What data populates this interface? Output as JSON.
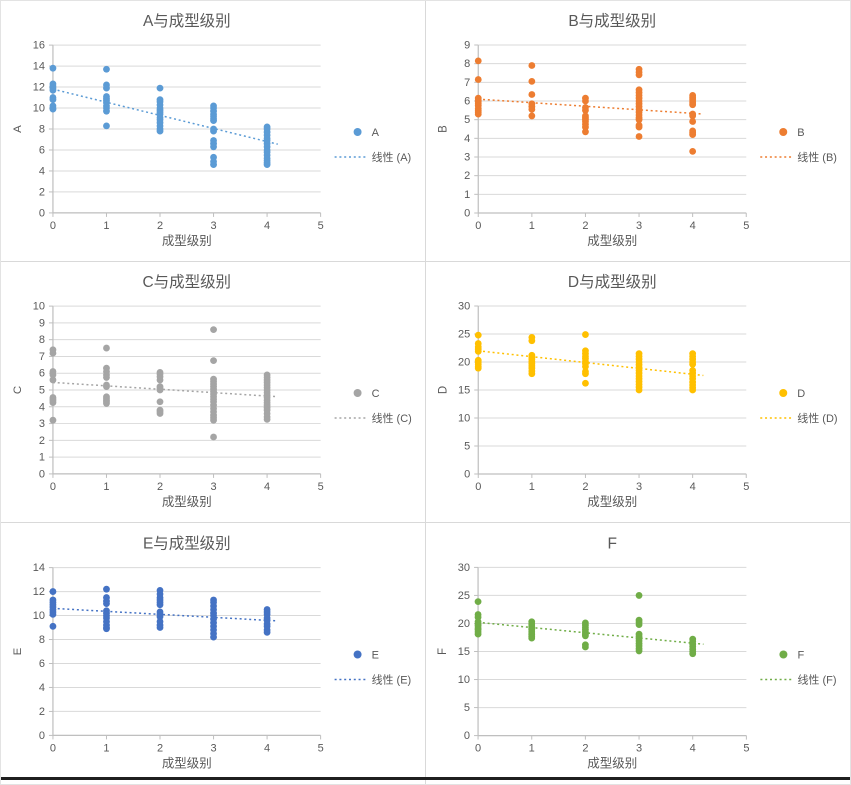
{
  "page": {
    "background_color": "#ffffff",
    "divider_color": "#d9d9d9",
    "bottom_edge_color": "#1f1f1f",
    "text_color": "#595959"
  },
  "chart_defaults": {
    "grid_color": "#d9d9d9",
    "axis_color": "#bfbfbf",
    "text_color": "#595959",
    "x_label": "成型级别",
    "legend_position": "right"
  },
  "chart_data": [
    {
      "type": "scatter",
      "title": "A与成型级别",
      "series_name": "A",
      "trend_name": "线性 (A)",
      "color": "#5B9BD5",
      "xlabel": "成型级别",
      "ylabel": "A",
      "xlim": [
        0,
        5
      ],
      "ylim": [
        0,
        16
      ],
      "x_ticks": [
        0,
        1,
        2,
        3,
        4,
        5
      ],
      "y_ticks": [
        0,
        2,
        4,
        6,
        8,
        10,
        12,
        14,
        16
      ],
      "grid": "horizontal",
      "points": [
        {
          "x": 0,
          "ys": [
            13.8,
            12.3,
            12.1,
            11.9,
            11.7,
            11.0,
            10.8,
            10.2,
            10.0,
            9.9
          ]
        },
        {
          "x": 1,
          "ys": [
            13.7,
            12.2,
            11.9,
            11.1,
            10.9,
            10.7,
            10.5,
            10.2,
            10.0,
            9.7,
            8.3
          ]
        },
        {
          "x": 2,
          "ys": [
            11.9,
            10.8,
            10.6,
            10.3,
            10.0,
            9.8,
            9.6,
            9.4,
            9.1,
            8.9,
            8.6,
            8.3,
            8.0,
            7.8
          ]
        },
        {
          "x": 3,
          "ys": [
            10.2,
            10.0,
            9.7,
            9.4,
            9.2,
            9.0,
            8.8,
            8.0,
            7.8,
            6.9,
            6.6,
            6.3,
            5.3,
            4.9,
            4.6
          ]
        },
        {
          "x": 4,
          "ys": [
            8.2,
            8.0,
            7.7,
            7.4,
            7.1,
            6.9,
            6.6,
            6.3,
            6.0,
            5.8,
            5.5,
            5.2,
            5.0,
            4.8,
            4.6
          ]
        }
      ],
      "trendline": {
        "x_start": 0,
        "y_start": 11.8,
        "x_end": 4.2,
        "y_end": 6.55
      }
    },
    {
      "type": "scatter",
      "title": "B与成型级别",
      "series_name": "B",
      "trend_name": "线性 (B)",
      "color": "#ED7D31",
      "xlabel": "成型级别",
      "ylabel": "B",
      "xlim": [
        0,
        5
      ],
      "ylim": [
        0,
        9
      ],
      "x_ticks": [
        0,
        1,
        2,
        3,
        4,
        5
      ],
      "y_ticks": [
        0,
        1,
        2,
        3,
        4,
        5,
        6,
        7,
        8,
        9
      ],
      "grid": "horizontal",
      "points": [
        {
          "x": 0,
          "ys": [
            8.15,
            7.15,
            6.15,
            6.05,
            5.95,
            5.85,
            5.75,
            5.6,
            5.5,
            5.4,
            5.3
          ]
        },
        {
          "x": 1,
          "ys": [
            7.9,
            7.05,
            6.35,
            5.85,
            5.7,
            5.55,
            5.2
          ]
        },
        {
          "x": 2,
          "ys": [
            6.15,
            6.0,
            5.65,
            5.5,
            5.2,
            5.1,
            5.0,
            4.9,
            4.75,
            4.6,
            4.35
          ]
        },
        {
          "x": 3,
          "ys": [
            7.7,
            7.55,
            7.4,
            6.6,
            6.45,
            6.3,
            6.15,
            6.0,
            5.85,
            5.7,
            5.55,
            5.4,
            5.25,
            5.1,
            5.0,
            4.7,
            4.6,
            4.1
          ]
        },
        {
          "x": 4,
          "ys": [
            6.3,
            6.2,
            6.1,
            6.0,
            5.9,
            5.8,
            5.3,
            5.2,
            4.9,
            4.4,
            4.3,
            4.2,
            3.3
          ]
        }
      ],
      "trendline": {
        "x_start": 0,
        "y_start": 6.1,
        "x_end": 4.2,
        "y_end": 5.3
      }
    },
    {
      "type": "scatter",
      "title": "C与成型级别",
      "series_name": "C",
      "trend_name": "线性 (C)",
      "color": "#A5A5A5",
      "xlabel": "成型级别",
      "ylabel": "C",
      "xlim": [
        0,
        5
      ],
      "ylim": [
        0,
        10
      ],
      "x_ticks": [
        0,
        1,
        2,
        3,
        4,
        5
      ],
      "y_ticks": [
        0,
        1,
        2,
        3,
        4,
        5,
        6,
        7,
        8,
        9,
        10
      ],
      "grid": "horizontal",
      "points": [
        {
          "x": 0,
          "ys": [
            7.4,
            7.2,
            6.1,
            5.9,
            5.6,
            4.55,
            4.45,
            4.35,
            4.25,
            3.2
          ]
        },
        {
          "x": 1,
          "ys": [
            7.5,
            6.3,
            6.1,
            5.9,
            5.75,
            5.3,
            5.2,
            4.6,
            4.5,
            4.4,
            4.3,
            4.2
          ]
        },
        {
          "x": 2,
          "ys": [
            6.05,
            5.95,
            5.8,
            5.6,
            5.2,
            5.1,
            5.0,
            4.3,
            3.8,
            3.7,
            3.6
          ]
        },
        {
          "x": 3,
          "ys": [
            8.6,
            6.75,
            5.65,
            5.5,
            5.35,
            5.2,
            5.05,
            4.9,
            4.75,
            4.6,
            4.45,
            4.3,
            4.1,
            3.9,
            3.7,
            3.5,
            3.35,
            3.2,
            2.2
          ]
        },
        {
          "x": 4,
          "ys": [
            5.9,
            5.75,
            5.6,
            5.45,
            5.3,
            5.15,
            5.0,
            4.85,
            4.7,
            4.55,
            4.4,
            4.25,
            4.1,
            3.95,
            3.8,
            3.6,
            3.4,
            3.25
          ]
        }
      ],
      "trendline": {
        "x_start": 0,
        "y_start": 5.45,
        "x_end": 4.2,
        "y_end": 4.6
      }
    },
    {
      "type": "scatter",
      "title": "D与成型级别",
      "series_name": "D",
      "trend_name": "线性 (D)",
      "color": "#FFC000",
      "xlabel": "成型级别",
      "ylabel": "D",
      "xlim": [
        0,
        5
      ],
      "ylim": [
        0,
        30
      ],
      "x_ticks": [
        0,
        1,
        2,
        3,
        4,
        5
      ],
      "y_ticks": [
        0,
        5,
        10,
        15,
        20,
        25,
        30
      ],
      "grid": "horizontal",
      "points": [
        {
          "x": 0,
          "ys": [
            24.8,
            23.3,
            22.7,
            22.3,
            21.9,
            20.3,
            20.0,
            19.6,
            19.2,
            18.9
          ]
        },
        {
          "x": 1,
          "ys": [
            24.4,
            23.8,
            21.2,
            20.9,
            20.5,
            20.1,
            19.7,
            19.3,
            18.9,
            18.4,
            17.9
          ]
        },
        {
          "x": 2,
          "ys": [
            24.9,
            22.0,
            21.5,
            21.0,
            20.6,
            20.1,
            19.7,
            19.2,
            18.3,
            17.9,
            16.2
          ]
        },
        {
          "x": 3,
          "ys": [
            21.5,
            21.0,
            20.5,
            20.0,
            19.5,
            19.0,
            18.5,
            18.0,
            17.5,
            17.0,
            16.5,
            16.0,
            15.5,
            15.0
          ]
        },
        {
          "x": 4,
          "ys": [
            21.5,
            21.0,
            20.5,
            20.0,
            19.6,
            18.5,
            18.0,
            17.5,
            17.0,
            16.4,
            15.9,
            15.4,
            15.0
          ]
        }
      ],
      "trendline": {
        "x_start": 0,
        "y_start": 22.0,
        "x_end": 4.2,
        "y_end": 17.6
      }
    },
    {
      "type": "scatter",
      "title": "E与成型级别",
      "series_name": "E",
      "trend_name": "线性 (E)",
      "color": "#4472C4",
      "xlabel": "成型级别",
      "ylabel": "E",
      "xlim": [
        0,
        5
      ],
      "ylim": [
        0,
        14
      ],
      "x_ticks": [
        0,
        1,
        2,
        3,
        4,
        5
      ],
      "y_ticks": [
        0,
        2,
        4,
        6,
        8,
        10,
        12,
        14
      ],
      "grid": "horizontal",
      "points": [
        {
          "x": 0,
          "ys": [
            12.0,
            11.3,
            11.1,
            10.9,
            10.7,
            10.5,
            10.3,
            10.1,
            9.1
          ]
        },
        {
          "x": 1,
          "ys": [
            12.2,
            11.5,
            11.2,
            11.0,
            10.4,
            10.2,
            10.0,
            9.8,
            9.5,
            9.2,
            9.0,
            8.9
          ]
        },
        {
          "x": 2,
          "ys": [
            12.1,
            11.8,
            11.5,
            11.3,
            11.1,
            10.9,
            10.3,
            10.1,
            9.9,
            9.5,
            9.2,
            9.0
          ]
        },
        {
          "x": 3,
          "ys": [
            11.3,
            11.1,
            10.8,
            10.5,
            10.2,
            10.0,
            9.7,
            9.4,
            9.1,
            8.8,
            8.5,
            8.2
          ]
        },
        {
          "x": 4,
          "ys": [
            10.5,
            10.3,
            10.1,
            9.8,
            9.6,
            9.3,
            9.1,
            8.8,
            8.6
          ]
        }
      ],
      "trendline": {
        "x_start": 0,
        "y_start": 10.6,
        "x_end": 4.2,
        "y_end": 9.55
      }
    },
    {
      "type": "scatter",
      "title": "F",
      "series_name": "F",
      "trend_name": "线性 (F)",
      "color": "#70AD47",
      "xlabel": "成型级别",
      "ylabel": "F",
      "xlim": [
        0,
        5
      ],
      "ylim": [
        0,
        30
      ],
      "x_ticks": [
        0,
        1,
        2,
        3,
        4,
        5
      ],
      "y_ticks": [
        0,
        5,
        10,
        15,
        20,
        25,
        30
      ],
      "grid": "horizontal",
      "points": [
        {
          "x": 0,
          "ys": [
            23.9,
            21.6,
            21.1,
            20.3,
            19.9,
            19.6,
            19.2,
            18.9,
            18.5,
            18.1
          ]
        },
        {
          "x": 1,
          "ys": [
            20.3,
            19.9,
            19.5,
            19.2,
            18.9,
            18.5,
            18.1,
            17.7,
            17.4
          ]
        },
        {
          "x": 2,
          "ys": [
            20.1,
            19.7,
            19.3,
            18.9,
            18.5,
            18.1,
            17.8,
            16.2,
            15.8
          ]
        },
        {
          "x": 3,
          "ys": [
            25.0,
            20.6,
            20.2,
            19.8,
            18.1,
            17.7,
            17.3,
            16.9,
            16.4,
            16.0,
            15.5,
            15.1
          ]
        },
        {
          "x": 4,
          "ys": [
            17.2,
            16.8,
            16.3,
            15.9,
            15.4,
            15.0,
            14.6
          ]
        }
      ],
      "trendline": {
        "x_start": 0,
        "y_start": 20.2,
        "x_end": 4.2,
        "y_end": 16.3
      }
    }
  ]
}
